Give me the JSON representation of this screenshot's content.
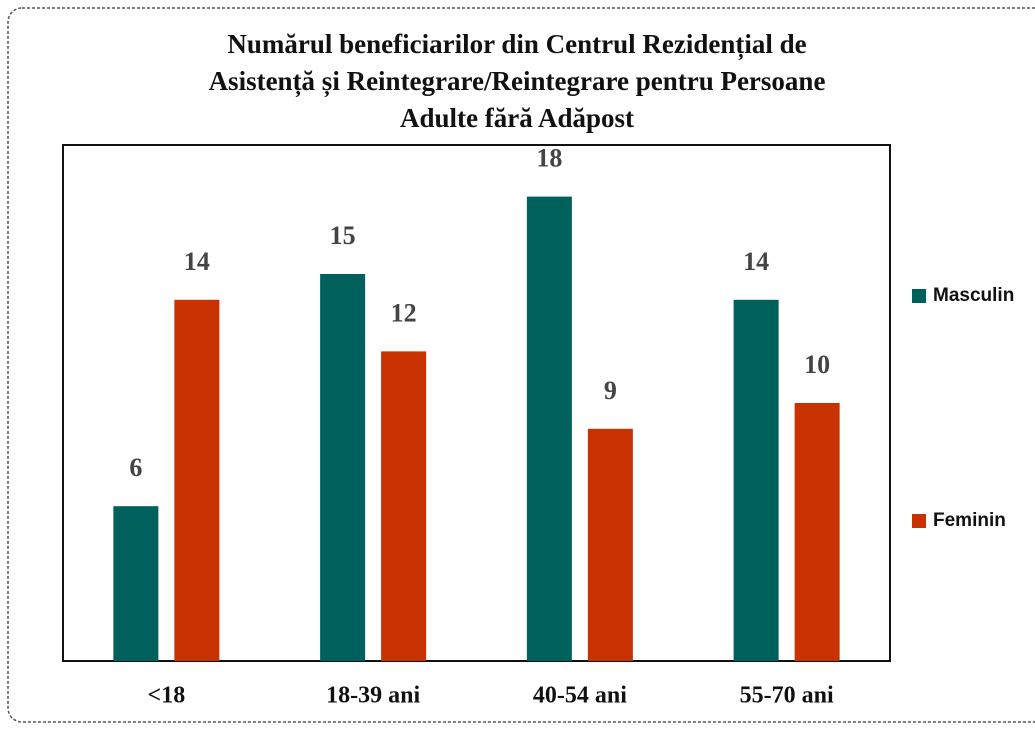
{
  "chart_data": {
    "type": "bar",
    "title": [
      "Numărul beneficiarilor din Centrul Rezidențial de",
      "Asistență și Reintegrare/Reintegrare pentru Persoane",
      "Adulte fără Adăpost"
    ],
    "categories": [
      "<18",
      "18-39 ani",
      "40-54 ani",
      "55-70 ani"
    ],
    "series": [
      {
        "name": "Masculin",
        "color": "#00605c",
        "values": [
          6,
          15,
          18,
          14
        ]
      },
      {
        "name": "Feminin",
        "color": "#c83200",
        "values": [
          14,
          12,
          9,
          10
        ]
      }
    ],
    "ylim": [
      0,
      20
    ],
    "legend": "right"
  }
}
